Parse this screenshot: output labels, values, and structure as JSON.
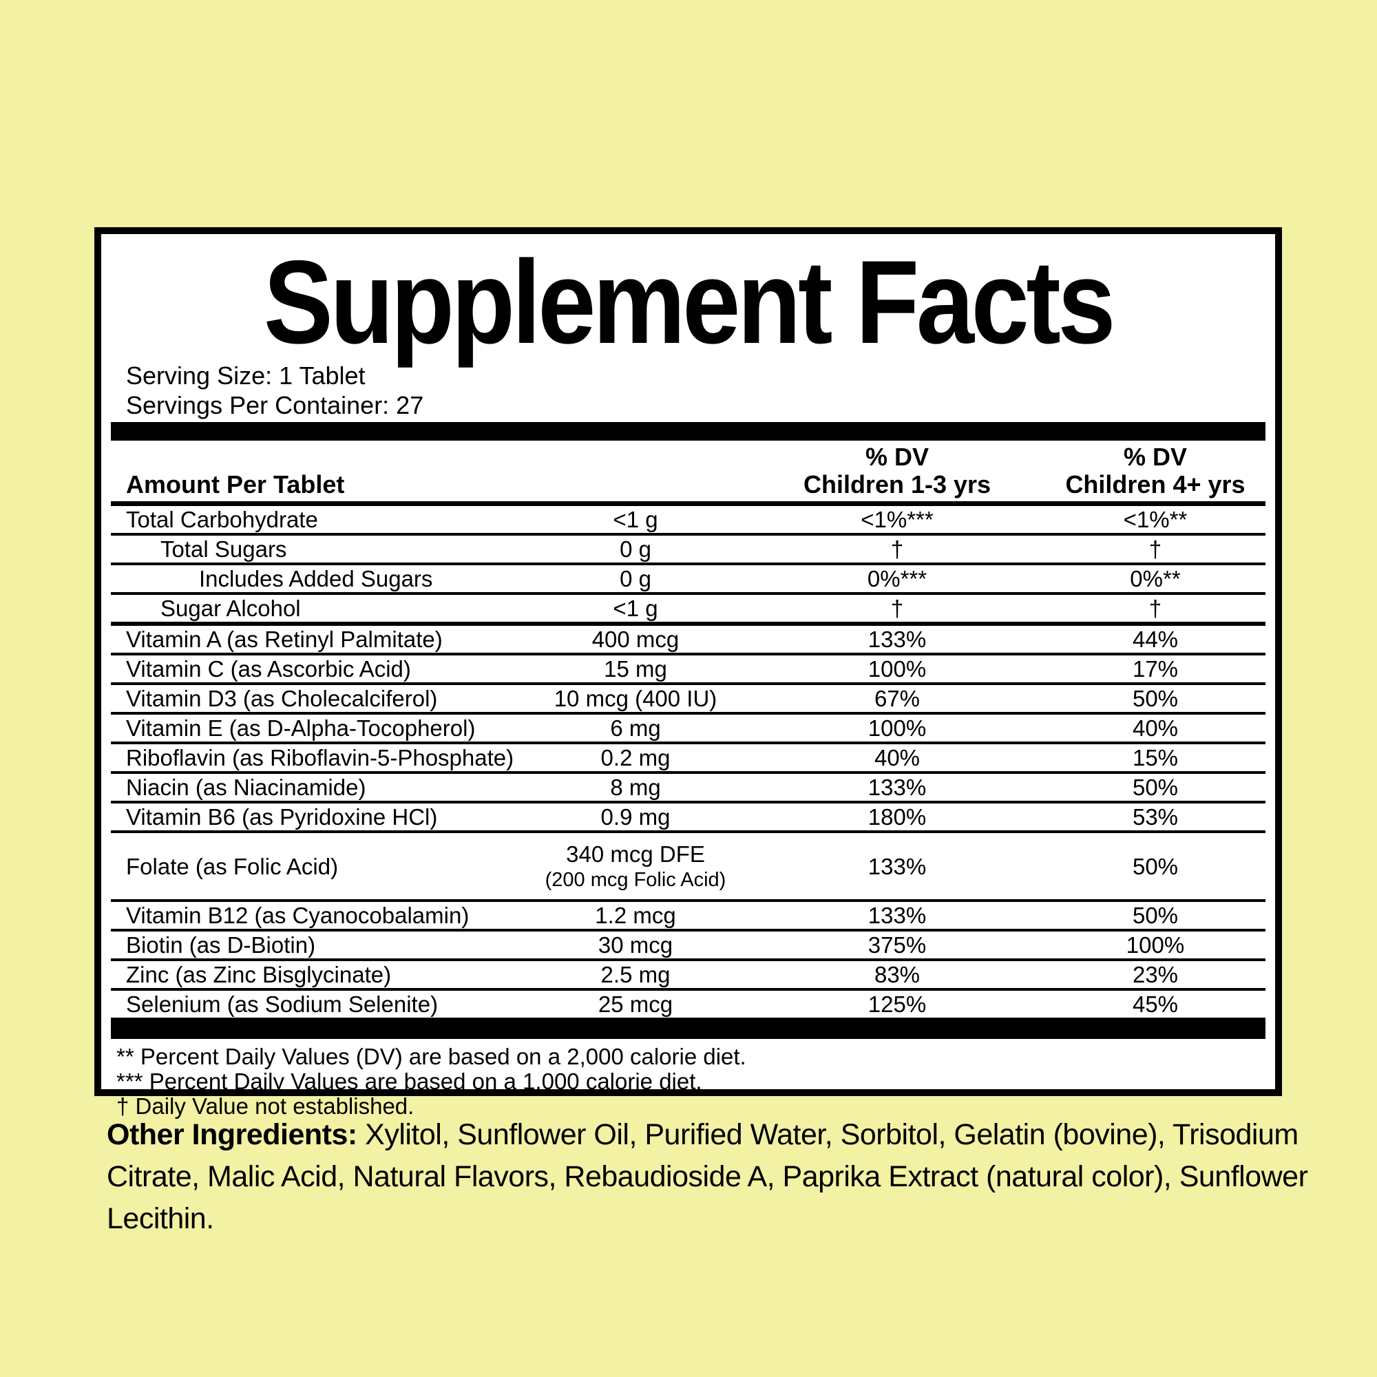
{
  "background_color": "#f2f1a4",
  "panel_background": "#ffffff",
  "label": {
    "title": "Supplement Facts",
    "serving_size": "Serving Size: 1 Tablet",
    "servings_per_container": "Servings Per Container: 27",
    "columns": {
      "amount_header": "Amount Per Tablet",
      "dv1_line1": "% DV",
      "dv1_line2": "Children 1-3 yrs",
      "dv2_line1": "% DV",
      "dv2_line2": "Children 4+ yrs"
    },
    "rows": [
      {
        "name": "Total Carbohydrate",
        "indent": 0,
        "amount": "<1 g",
        "dv1": "<1%***",
        "dv2": "<1%**"
      },
      {
        "name": "Total Sugars",
        "indent": 1,
        "amount": "0 g",
        "dv1": "†",
        "dv2": "†"
      },
      {
        "name": "Includes Added Sugars",
        "indent": 2,
        "amount": "0 g",
        "dv1": "0%***",
        "dv2": "0%**"
      },
      {
        "name": "Sugar Alcohol",
        "indent": 1,
        "amount": "<1 g",
        "dv1": "†",
        "dv2": "†",
        "thick_bottom": true
      },
      {
        "name": "Vitamin A (as Retinyl Palmitate)",
        "indent": 0,
        "amount": "400 mcg",
        "dv1": "133%",
        "dv2": "44%"
      },
      {
        "name": "Vitamin C (as Ascorbic Acid)",
        "indent": 0,
        "amount": "15 mg",
        "dv1": "100%",
        "dv2": "17%"
      },
      {
        "name": "Vitamin D3 (as Cholecalciferol)",
        "indent": 0,
        "amount": "10 mcg  (400 IU)",
        "dv1": "67%",
        "dv2": "50%"
      },
      {
        "name": "Vitamin E (as D-Alpha-Tocopherol)",
        "indent": 0,
        "amount": "6 mg",
        "dv1": "100%",
        "dv2": "40%"
      },
      {
        "name": "Riboflavin (as Riboflavin-5-Phosphate)",
        "indent": 0,
        "amount": "0.2 mg",
        "dv1": "40%",
        "dv2": "15%"
      },
      {
        "name": "Niacin (as Niacinamide)",
        "indent": 0,
        "amount": "8 mg",
        "dv1": "133%",
        "dv2": "50%"
      },
      {
        "name": "Vitamin B6 (as Pyridoxine HCl)",
        "indent": 0,
        "amount": "0.9 mg",
        "dv1": "180%",
        "dv2": "53%"
      },
      {
        "name": "Folate (as Folic Acid)",
        "indent": 0,
        "amount": "340 mcg DFE",
        "amount2": "(200 mcg Folic Acid)",
        "dv1": "133%",
        "dv2": "50%"
      },
      {
        "name": "Vitamin B12 (as Cyanocobalamin)",
        "indent": 0,
        "amount": "1.2 mcg",
        "dv1": "133%",
        "dv2": "50%"
      },
      {
        "name": "Biotin (as D-Biotin)",
        "indent": 0,
        "amount": "30 mcg",
        "dv1": "375%",
        "dv2": "100%"
      },
      {
        "name": "Zinc (as Zinc Bisglycinate)",
        "indent": 0,
        "amount": "2.5 mg",
        "dv1": "83%",
        "dv2": "23%"
      },
      {
        "name": "Selenium (as Sodium Selenite)",
        "indent": 0,
        "amount": "25 mcg",
        "dv1": "125%",
        "dv2": "45%"
      }
    ],
    "footnotes": [
      "** Percent Daily Values (DV) are based on a 2,000 calorie diet.",
      "*** Percent Daily Values are based on a 1,000 calorie diet.",
      "† Daily Value not established."
    ]
  },
  "other_ingredients": {
    "label": "Other Ingredients:",
    "text": " Xylitol, Sunflower Oil, Purified Water, Sorbitol, Gelatin (bovine), Trisodium Citrate, Malic Acid, Natural Flavors, Rebaudioside A, Paprika Extract (natural color), Sunflower Lecithin."
  }
}
